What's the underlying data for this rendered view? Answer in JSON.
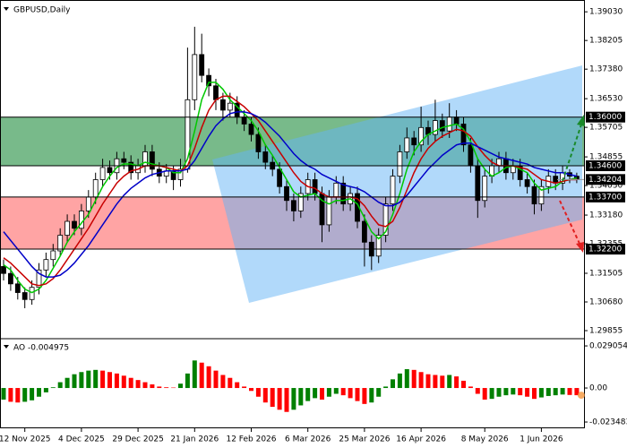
{
  "chart_data": [
    {
      "type": "candlestick",
      "title": "GBPUSD,Daily",
      "categories": [
        null,
        null,
        null,
        "12 Nov 2025",
        null,
        null,
        null,
        null,
        null,
        null,
        null,
        "4 Dec 2025",
        null,
        null,
        null,
        null,
        null,
        null,
        null,
        "29 Dec 2025",
        null,
        null,
        null,
        null,
        null,
        null,
        null,
        "21 Jan 2026",
        null,
        null,
        null,
        null,
        null,
        null,
        null,
        "12 Feb 2026",
        null,
        null,
        null,
        null,
        null,
        null,
        null,
        "6 Mar 2026",
        null,
        null,
        null,
        null,
        null,
        null,
        null,
        "25 Mar 2026",
        null,
        null,
        null,
        null,
        null,
        null,
        null,
        "16 Apr 2026",
        null,
        null,
        null,
        null,
        null,
        null,
        null,
        null,
        "8 May 2026",
        null,
        null,
        null,
        null,
        null,
        null,
        null,
        "1 Jun 2026",
        null,
        null,
        null,
        null,
        null
      ],
      "open": [
        1.317,
        1.315,
        1.312,
        1.3095,
        1.3075,
        1.311,
        1.316,
        1.319,
        1.3215,
        1.326,
        1.33,
        1.328,
        1.333,
        1.337,
        1.342,
        1.3455,
        1.344,
        1.348,
        1.347,
        1.344,
        1.346,
        1.35,
        1.345,
        1.343,
        1.3445,
        1.342,
        1.345,
        1.365,
        1.378,
        1.372,
        1.369,
        1.365,
        1.362,
        1.364,
        1.36,
        1.358,
        1.355,
        1.35,
        1.347,
        1.345,
        1.34,
        1.336,
        1.333,
        1.338,
        1.342,
        1.338,
        1.329,
        1.337,
        1.341,
        1.335,
        1.338,
        1.33,
        1.324,
        1.32,
        1.326,
        1.335,
        1.343,
        1.35,
        1.354,
        1.352,
        1.357,
        1.355,
        1.359,
        1.356,
        1.36,
        1.358,
        1.352,
        1.346,
        1.336,
        1.343,
        1.346,
        1.348,
        1.344,
        1.346,
        1.342,
        1.34,
        1.335,
        1.34,
        1.343,
        1.341,
        1.344,
        1.343
      ],
      "high": [
        1.319,
        1.317,
        1.314,
        1.311,
        1.313,
        1.318,
        1.321,
        1.3235,
        1.328,
        1.332,
        1.332,
        1.335,
        1.339,
        1.344,
        1.348,
        1.3475,
        1.35,
        1.35,
        1.349,
        1.348,
        1.352,
        1.352,
        1.347,
        1.3465,
        1.346,
        1.348,
        1.38,
        1.386,
        1.384,
        1.374,
        1.371,
        1.367,
        1.367,
        1.366,
        1.362,
        1.36,
        1.357,
        1.352,
        1.349,
        1.347,
        1.342,
        1.338,
        1.34,
        1.344,
        1.344,
        1.34,
        1.339,
        1.343,
        1.343,
        1.34,
        1.34,
        1.332,
        1.326,
        1.328,
        1.337,
        1.345,
        1.352,
        1.357,
        1.356,
        1.363,
        1.359,
        1.365,
        1.361,
        1.364,
        1.362,
        1.36,
        1.354,
        1.348,
        1.345,
        1.348,
        1.35,
        1.35,
        1.348,
        1.348,
        1.344,
        1.342,
        1.342,
        1.345,
        1.345,
        1.346,
        1.345,
        1.344
      ],
      "low": [
        1.313,
        1.31,
        1.3075,
        1.305,
        1.306,
        1.309,
        1.314,
        1.317,
        1.32,
        1.324,
        1.326,
        1.326,
        1.331,
        1.335,
        1.34,
        1.342,
        1.342,
        1.345,
        1.342,
        1.342,
        1.344,
        1.343,
        1.341,
        1.341,
        1.339,
        1.34,
        1.344,
        1.362,
        1.37,
        1.366,
        1.362,
        1.359,
        1.36,
        1.358,
        1.356,
        1.353,
        1.348,
        1.345,
        1.343,
        1.338,
        1.333,
        1.33,
        1.331,
        1.336,
        1.336,
        1.324,
        1.327,
        1.335,
        1.333,
        1.333,
        1.328,
        1.317,
        1.316,
        1.318,
        1.324,
        1.333,
        1.341,
        1.348,
        1.349,
        1.35,
        1.352,
        1.353,
        1.354,
        1.354,
        1.356,
        1.35,
        1.344,
        1.331,
        1.334,
        1.341,
        1.344,
        1.342,
        1.342,
        1.34,
        1.338,
        1.332,
        1.333,
        1.338,
        1.339,
        1.339,
        1.341,
        1.341
      ],
      "close": [
        1.315,
        1.312,
        1.3095,
        1.3075,
        1.311,
        1.316,
        1.319,
        1.3215,
        1.326,
        1.33,
        1.328,
        1.333,
        1.337,
        1.342,
        1.3455,
        1.344,
        1.348,
        1.347,
        1.344,
        1.346,
        1.35,
        1.345,
        1.343,
        1.3445,
        1.342,
        1.345,
        1.365,
        1.378,
        1.372,
        1.369,
        1.365,
        1.362,
        1.364,
        1.36,
        1.358,
        1.355,
        1.35,
        1.347,
        1.345,
        1.34,
        1.336,
        1.333,
        1.338,
        1.342,
        1.338,
        1.329,
        1.337,
        1.341,
        1.335,
        1.338,
        1.33,
        1.324,
        1.32,
        1.326,
        1.335,
        1.343,
        1.35,
        1.354,
        1.352,
        1.357,
        1.355,
        1.359,
        1.356,
        1.36,
        1.358,
        1.352,
        1.346,
        1.336,
        1.343,
        1.346,
        1.348,
        1.344,
        1.346,
        1.342,
        1.34,
        1.335,
        1.34,
        1.343,
        1.341,
        1.344,
        1.343,
        1.342
      ],
      "series": [
        {
          "color": "#00c800",
          "values": [
            1.3175,
            1.316,
            1.313,
            1.3105,
            1.3095,
            1.3105,
            1.313,
            1.3165,
            1.32,
            1.324,
            1.327,
            1.3295,
            1.332,
            1.336,
            1.34,
            1.343,
            1.3455,
            1.3465,
            1.3465,
            1.346,
            1.347,
            1.3465,
            1.346,
            1.3455,
            1.344,
            1.344,
            1.348,
            1.356,
            1.365,
            1.37,
            1.37,
            1.368,
            1.365,
            1.363,
            1.361,
            1.359,
            1.356,
            1.352,
            1.349,
            1.3455,
            1.342,
            1.3385,
            1.337,
            1.3375,
            1.338,
            1.336,
            1.335,
            1.336,
            1.336,
            1.3365,
            1.335,
            1.331,
            1.327,
            1.325,
            1.327,
            1.332,
            1.338,
            1.345,
            1.35,
            1.353,
            1.355,
            1.356,
            1.357,
            1.3575,
            1.358,
            1.3565,
            1.353,
            1.348,
            1.345,
            1.343,
            1.344,
            1.3455,
            1.346,
            1.345,
            1.344,
            1.341,
            1.339,
            1.3395,
            1.34,
            1.3415,
            1.342,
            1.3425
          ]
        },
        {
          "color": "#c80000",
          "values": [
            1.3195,
            1.318,
            1.316,
            1.314,
            1.312,
            1.3115,
            1.312,
            1.3135,
            1.316,
            1.319,
            1.322,
            1.325,
            1.328,
            1.3315,
            1.335,
            1.338,
            1.341,
            1.343,
            1.3445,
            1.345,
            1.346,
            1.346,
            1.346,
            1.3455,
            1.345,
            1.3445,
            1.346,
            1.351,
            1.357,
            1.362,
            1.365,
            1.366,
            1.366,
            1.3645,
            1.363,
            1.361,
            1.359,
            1.356,
            1.353,
            1.35,
            1.347,
            1.344,
            1.3415,
            1.34,
            1.3395,
            1.338,
            1.337,
            1.337,
            1.337,
            1.337,
            1.3365,
            1.3345,
            1.3315,
            1.329,
            1.3285,
            1.33,
            1.334,
            1.339,
            1.344,
            1.348,
            1.351,
            1.353,
            1.3545,
            1.3555,
            1.3565,
            1.356,
            1.3545,
            1.3515,
            1.349,
            1.347,
            1.346,
            1.346,
            1.346,
            1.3455,
            1.345,
            1.3435,
            1.342,
            1.3415,
            1.341,
            1.3415,
            1.342,
            1.342
          ]
        },
        {
          "color": "#0000c8",
          "values": [
            1.327,
            1.3245,
            1.322,
            1.3195,
            1.317,
            1.315,
            1.314,
            1.314,
            1.3145,
            1.316,
            1.318,
            1.3205,
            1.323,
            1.326,
            1.329,
            1.332,
            1.335,
            1.3375,
            1.3395,
            1.341,
            1.3425,
            1.3435,
            1.344,
            1.3445,
            1.3445,
            1.3445,
            1.345,
            1.3475,
            1.351,
            1.3545,
            1.3575,
            1.3595,
            1.361,
            1.3615,
            1.3615,
            1.361,
            1.36,
            1.3585,
            1.3565,
            1.3545,
            1.352,
            1.3495,
            1.3475,
            1.346,
            1.345,
            1.3435,
            1.3425,
            1.3415,
            1.3405,
            1.34,
            1.3395,
            1.3385,
            1.337,
            1.3355,
            1.3345,
            1.3345,
            1.3355,
            1.3375,
            1.34,
            1.3425,
            1.345,
            1.347,
            1.349,
            1.3505,
            1.352,
            1.3525,
            1.3525,
            1.3515,
            1.3505,
            1.3495,
            1.3485,
            1.348,
            1.3475,
            1.347,
            1.3465,
            1.3455,
            1.345,
            1.3445,
            1.344,
            1.344,
            1.3435,
            1.343
          ]
        }
      ],
      "levels": [
        {
          "value": 1.36,
          "label": "1.36000"
        },
        {
          "value": 1.346,
          "label": "1.34600"
        },
        {
          "value": 1.337,
          "label": "1.33700"
        },
        {
          "value": 1.322,
          "label": "1.32200"
        }
      ],
      "current_price": {
        "value": 1.34204,
        "label": "1.34204"
      },
      "upper_zone_color": "rgba(30,140,60,0.6)",
      "lower_zone_color": "rgba(255,90,90,0.55)",
      "up_color": "#ffffff",
      "down_color": "#000000",
      "ylim": [
        1.297,
        1.3937
      ],
      "yticks": [
        {
          "value": 1.3903,
          "label": "1.39030"
        },
        {
          "value": 1.38205,
          "label": "1.38205"
        },
        {
          "value": 1.3738,
          "label": "1.37380"
        },
        {
          "value": 1.3653,
          "label": "1.36530"
        },
        {
          "value": 1.35705,
          "label": "1.35705"
        },
        {
          "value": 1.34855,
          "label": "1.34855"
        },
        {
          "value": 1.3403,
          "label": "1.34030"
        },
        {
          "value": 1.3318,
          "label": "1.33180"
        },
        {
          "value": 1.32355,
          "label": "1.32355"
        },
        {
          "value": 1.31505,
          "label": "1.31505"
        },
        {
          "value": 1.3068,
          "label": "1.30680"
        },
        {
          "value": 1.29855,
          "label": "1.29855"
        }
      ]
    },
    {
      "type": "bar",
      "title": "AO -0.004975",
      "values": [
        -0.008,
        -0.0095,
        -0.01,
        -0.0095,
        -0.0085,
        -0.006,
        -0.003,
        0.0005,
        0.004,
        0.007,
        0.0095,
        0.011,
        0.012,
        0.0125,
        0.012,
        0.011,
        0.01,
        0.0085,
        0.007,
        0.0055,
        0.004,
        0.0025,
        0.001,
        0.0005,
        0.0003,
        0.003,
        0.01,
        0.019,
        0.0175,
        0.015,
        0.012,
        0.009,
        0.007,
        0.004,
        0.001,
        -0.002,
        -0.006,
        -0.01,
        -0.013,
        -0.015,
        -0.0165,
        -0.015,
        -0.012,
        -0.009,
        -0.007,
        -0.008,
        -0.006,
        -0.004,
        -0.005,
        -0.007,
        -0.009,
        -0.011,
        -0.01,
        -0.006,
        0.001,
        0.006,
        0.01,
        0.013,
        0.0125,
        0.011,
        0.0095,
        0.009,
        0.0085,
        0.009,
        0.008,
        0.005,
        0.001,
        -0.004,
        -0.008,
        -0.0075,
        -0.006,
        -0.005,
        -0.0045,
        -0.005,
        -0.006,
        -0.0075,
        -0.0065,
        -0.0055,
        -0.005,
        -0.0045,
        -0.0048,
        -0.004975
      ],
      "up_color": "#008000",
      "down_color": "#ff0000",
      "ylim": [
        -0.0278,
        0.0328
      ],
      "yticks": [
        {
          "value": 0.029054,
          "label": "0.029054"
        },
        {
          "value": 0,
          "label": "0.00"
        },
        {
          "value": -0.023483,
          "label": "-0.023483"
        }
      ]
    }
  ]
}
